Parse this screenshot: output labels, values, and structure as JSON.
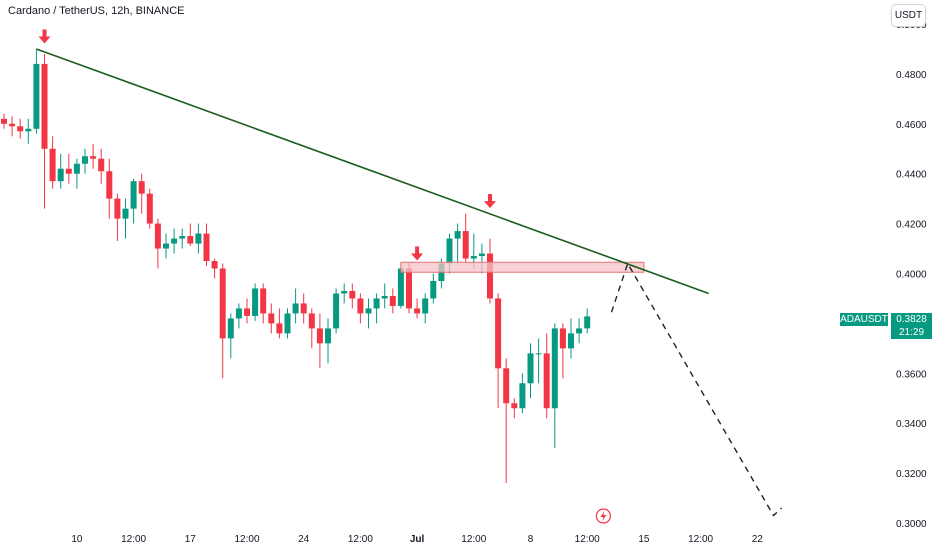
{
  "header": {
    "symbol_title": "Cardano / TetherUS, 12h, BINANCE",
    "currency_button": "USDT"
  },
  "price_label": {
    "ticker": "ADAUSDT",
    "price": "0.3828",
    "countdown": "21:29"
  },
  "colors": {
    "up": "#089981",
    "down": "#f23645",
    "trendline": "#1b5e20",
    "zone_fill": "#f5c3c8",
    "zone_border": "#e57373",
    "arrow": "#f23645",
    "axis_text": "#131722"
  },
  "icons": {
    "event_marker": "lightning-bolt-icon",
    "arrows": "down-arrow-icon"
  },
  "chart_data": {
    "type": "candlestick",
    "title": "Cardano / TetherUS, 12h, BINANCE",
    "ylim": [
      0.3,
      0.5
    ],
    "y_ticks": [
      "0.3000",
      "0.3200",
      "0.3400",
      "0.3600",
      "0.3800",
      "0.4000",
      "0.4200",
      "0.4400",
      "0.4600",
      "0.4800",
      "0.5000"
    ],
    "x_ticks": [
      {
        "label": "10",
        "i": 9
      },
      {
        "label": "12:00",
        "i": 16
      },
      {
        "label": "17",
        "i": 23
      },
      {
        "label": "12:00",
        "i": 30
      },
      {
        "label": "24",
        "i": 37
      },
      {
        "label": "12:00",
        "i": 44
      },
      {
        "label": "Jul",
        "i": 51
      },
      {
        "label": "12:00",
        "i": 58
      },
      {
        "label": "8",
        "i": 65
      },
      {
        "label": "12:00",
        "i": 72
      },
      {
        "label": "15",
        "i": 79
      },
      {
        "label": "12:00",
        "i": 86
      },
      {
        "label": "22",
        "i": 93
      }
    ],
    "candles": [
      [
        0.462,
        0.464,
        0.458,
        0.46
      ],
      [
        0.46,
        0.463,
        0.455,
        0.459
      ],
      [
        0.459,
        0.462,
        0.454,
        0.457
      ],
      [
        0.457,
        0.462,
        0.452,
        0.458
      ],
      [
        0.458,
        0.49,
        0.456,
        0.484
      ],
      [
        0.484,
        0.488,
        0.426,
        0.45
      ],
      [
        0.45,
        0.455,
        0.434,
        0.437
      ],
      [
        0.437,
        0.448,
        0.434,
        0.442
      ],
      [
        0.442,
        0.448,
        0.436,
        0.44
      ],
      [
        0.44,
        0.446,
        0.434,
        0.444
      ],
      [
        0.444,
        0.45,
        0.44,
        0.447
      ],
      [
        0.447,
        0.452,
        0.442,
        0.446
      ],
      [
        0.446,
        0.45,
        0.436,
        0.441
      ],
      [
        0.441,
        0.446,
        0.422,
        0.43
      ],
      [
        0.43,
        0.432,
        0.413,
        0.422
      ],
      [
        0.422,
        0.43,
        0.414,
        0.426
      ],
      [
        0.426,
        0.438,
        0.42,
        0.437
      ],
      [
        0.437,
        0.44,
        0.424,
        0.432
      ],
      [
        0.432,
        0.434,
        0.418,
        0.42
      ],
      [
        0.42,
        0.422,
        0.402,
        0.41
      ],
      [
        0.41,
        0.416,
        0.406,
        0.412
      ],
      [
        0.412,
        0.418,
        0.408,
        0.414
      ],
      [
        0.414,
        0.418,
        0.41,
        0.415
      ],
      [
        0.415,
        0.42,
        0.411,
        0.412
      ],
      [
        0.412,
        0.42,
        0.408,
        0.416
      ],
      [
        0.416,
        0.42,
        0.403,
        0.405
      ],
      [
        0.405,
        0.406,
        0.398,
        0.402
      ],
      [
        0.402,
        0.404,
        0.358,
        0.374
      ],
      [
        0.374,
        0.384,
        0.366,
        0.382
      ],
      [
        0.382,
        0.388,
        0.378,
        0.386
      ],
      [
        0.386,
        0.39,
        0.38,
        0.383
      ],
      [
        0.383,
        0.396,
        0.381,
        0.394
      ],
      [
        0.394,
        0.396,
        0.38,
        0.384
      ],
      [
        0.384,
        0.388,
        0.376,
        0.38
      ],
      [
        0.38,
        0.386,
        0.374,
        0.376
      ],
      [
        0.376,
        0.386,
        0.374,
        0.384
      ],
      [
        0.384,
        0.394,
        0.38,
        0.388
      ],
      [
        0.388,
        0.392,
        0.38,
        0.384
      ],
      [
        0.384,
        0.386,
        0.37,
        0.378
      ],
      [
        0.378,
        0.384,
        0.362,
        0.372
      ],
      [
        0.372,
        0.382,
        0.364,
        0.378
      ],
      [
        0.378,
        0.394,
        0.376,
        0.392
      ],
      [
        0.392,
        0.396,
        0.388,
        0.393
      ],
      [
        0.393,
        0.396,
        0.386,
        0.39
      ],
      [
        0.39,
        0.392,
        0.38,
        0.384
      ],
      [
        0.384,
        0.39,
        0.378,
        0.386
      ],
      [
        0.386,
        0.392,
        0.38,
        0.39
      ],
      [
        0.39,
        0.396,
        0.386,
        0.391
      ],
      [
        0.391,
        0.394,
        0.384,
        0.387
      ],
      [
        0.387,
        0.404,
        0.386,
        0.402
      ],
      [
        0.402,
        0.404,
        0.384,
        0.386
      ],
      [
        0.386,
        0.39,
        0.382,
        0.384
      ],
      [
        0.384,
        0.392,
        0.38,
        0.39
      ],
      [
        0.39,
        0.4,
        0.388,
        0.397
      ],
      [
        0.397,
        0.406,
        0.394,
        0.404
      ],
      [
        0.404,
        0.416,
        0.4,
        0.414
      ],
      [
        0.414,
        0.42,
        0.404,
        0.417
      ],
      [
        0.417,
        0.424,
        0.404,
        0.406
      ],
      [
        0.406,
        0.416,
        0.402,
        0.407
      ],
      [
        0.407,
        0.412,
        0.4,
        0.408
      ],
      [
        0.408,
        0.414,
        0.388,
        0.39
      ],
      [
        0.39,
        0.392,
        0.346,
        0.362
      ],
      [
        0.362,
        0.366,
        0.316,
        0.348
      ],
      [
        0.348,
        0.35,
        0.342,
        0.346
      ],
      [
        0.346,
        0.36,
        0.344,
        0.356
      ],
      [
        0.356,
        0.372,
        0.35,
        0.368
      ],
      [
        0.368,
        0.374,
        0.356,
        0.368
      ],
      [
        0.368,
        0.376,
        0.342,
        0.346
      ],
      [
        0.346,
        0.38,
        0.33,
        0.378
      ],
      [
        0.378,
        0.38,
        0.358,
        0.37
      ],
      [
        0.37,
        0.382,
        0.366,
        0.376
      ],
      [
        0.376,
        0.382,
        0.372,
        0.378
      ],
      [
        0.378,
        0.386,
        0.376,
        0.3828
      ]
    ],
    "annotations": {
      "trendline": [
        [
          4,
          0.49
        ],
        [
          87,
          0.392
        ]
      ],
      "resistance_zone": {
        "x_range": [
          49,
          79
        ],
        "y_range": [
          0.4005,
          0.4045
        ]
      },
      "projection": [
        [
          75,
          0.3845
        ],
        [
          77,
          0.404
        ],
        [
          95,
          0.303
        ],
        [
          96,
          0.306
        ]
      ],
      "down_arrows": [
        [
          5,
          0.493
        ],
        [
          60,
          0.427
        ],
        [
          51,
          0.406
        ]
      ],
      "event_marker_i": 74
    }
  }
}
